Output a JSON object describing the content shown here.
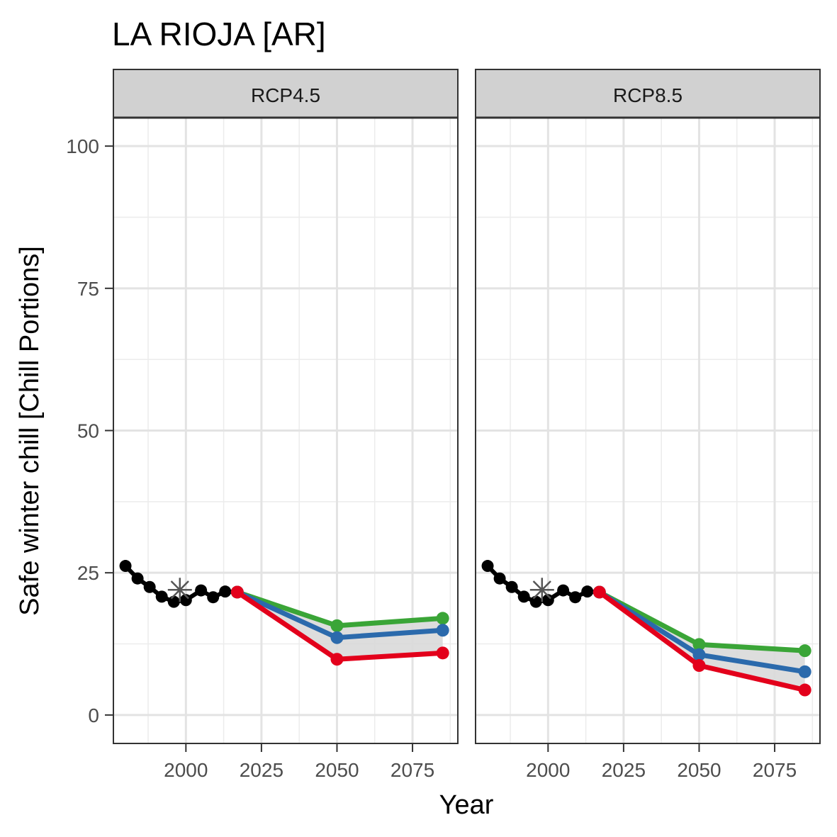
{
  "chart_data": {
    "type": "line",
    "title": "LA RIOJA [AR]",
    "xlabel": "Year",
    "ylabel": "Safe winter chill [Chill Portions]",
    "xlim": [
      1976,
      2090
    ],
    "ylim": [
      -5,
      105
    ],
    "x_ticks": [
      2000,
      2025,
      2050,
      2075
    ],
    "y_ticks": [
      0,
      25,
      50,
      75,
      100
    ],
    "grid": true,
    "legend": "none",
    "colors": {
      "historic": "#000000",
      "optimistic": "#3aa537",
      "intermediate": "#2b6aac",
      "pessimistic": "#e3001b",
      "band": "#d9d9d9",
      "baseline_marker": "#555555"
    },
    "panels": [
      {
        "label": "RCP4.5",
        "historic": {
          "x": [
            1980,
            1984,
            1988,
            1992,
            1996,
            2000,
            2005,
            2009,
            2013,
            2017
          ],
          "y": [
            26.2,
            24.0,
            22.5,
            20.8,
            19.9,
            20.2,
            21.9,
            20.7,
            21.7,
            21.6
          ]
        },
        "baseline_marker": {
          "x": 1998,
          "y": 22.0
        },
        "series": [
          {
            "key": "optimistic",
            "x": [
              2017,
              2050,
              2085
            ],
            "y": [
              21.6,
              15.7,
              17.0
            ]
          },
          {
            "key": "intermediate",
            "x": [
              2017,
              2050,
              2085
            ],
            "y": [
              21.6,
              13.6,
              14.9
            ]
          },
          {
            "key": "pessimistic",
            "x": [
              2017,
              2050,
              2085
            ],
            "y": [
              21.6,
              9.8,
              10.9
            ]
          }
        ]
      },
      {
        "label": "RCP8.5",
        "historic": {
          "x": [
            1980,
            1984,
            1988,
            1992,
            1996,
            2000,
            2005,
            2009,
            2013,
            2017
          ],
          "y": [
            26.2,
            24.0,
            22.5,
            20.8,
            19.9,
            20.2,
            21.9,
            20.7,
            21.7,
            21.6
          ]
        },
        "baseline_marker": {
          "x": 1998,
          "y": 22.0
        },
        "series": [
          {
            "key": "optimistic",
            "x": [
              2017,
              2050,
              2085
            ],
            "y": [
              21.6,
              12.4,
              11.3
            ]
          },
          {
            "key": "intermediate",
            "x": [
              2017,
              2050,
              2085
            ],
            "y": [
              21.6,
              10.6,
              7.6
            ]
          },
          {
            "key": "pessimistic",
            "x": [
              2017,
              2050,
              2085
            ],
            "y": [
              21.6,
              8.7,
              4.4
            ]
          }
        ]
      }
    ]
  }
}
